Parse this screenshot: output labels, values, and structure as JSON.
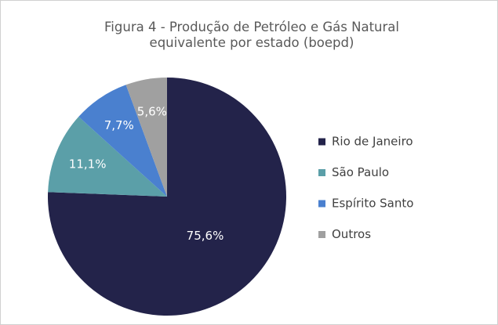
{
  "chart_data": {
    "type": "pie",
    "title": "Figura 4 - Produção de Petróleo e Gás Natural equivalente por estado (boepd)",
    "categories": [
      "Rio de Janeiro",
      "São Paulo",
      "Espírito Santo",
      "Outros"
    ],
    "values": [
      75.6,
      11.1,
      7.7,
      5.6
    ],
    "value_labels": [
      "75,6%",
      "11,1%",
      "7,7%",
      "5,6%"
    ],
    "colors": [
      "#23234a",
      "#5b9fa8",
      "#4a80cf",
      "#a0a0a0"
    ],
    "legend": "right"
  }
}
